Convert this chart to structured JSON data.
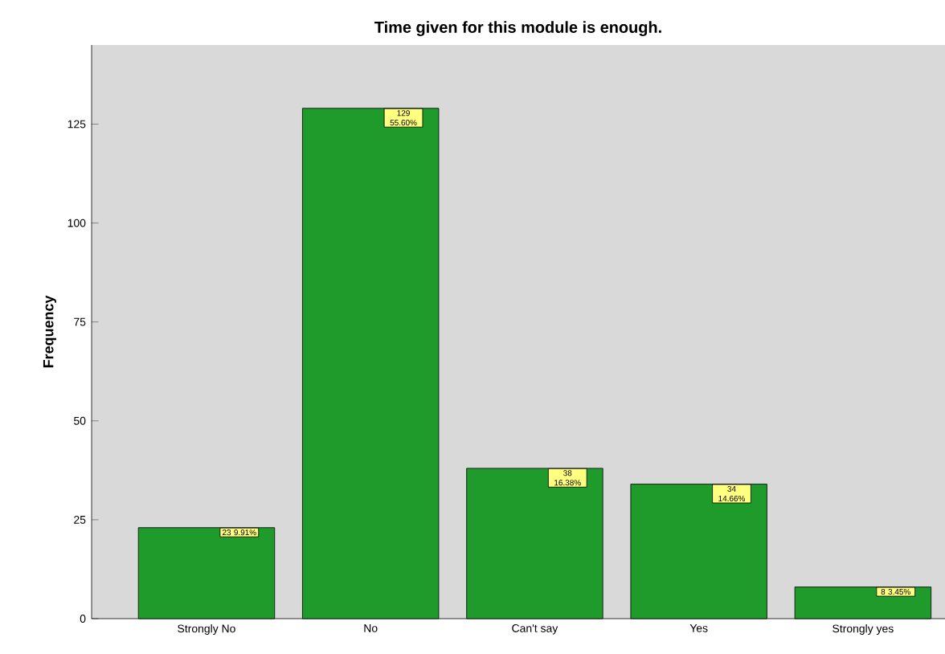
{
  "chart_data": {
    "type": "bar",
    "title": "Time given for this module is enough.",
    "ylabel": "Frequency",
    "categories": [
      "Strongly No",
      "No",
      "Can't say",
      "Yes",
      "Strongly yes"
    ],
    "values": [
      23,
      129,
      38,
      34,
      8
    ],
    "color": "#1f9b2c",
    "value_labels": [
      "23 9.91%",
      "129 55.60%",
      "38 16.38%",
      "34 14.66%",
      "8 3.45%"
    ],
    "ylim": [
      0,
      145
    ],
    "yticks": [
      0,
      25,
      50,
      75,
      100,
      125
    ],
    "grid": false
  }
}
